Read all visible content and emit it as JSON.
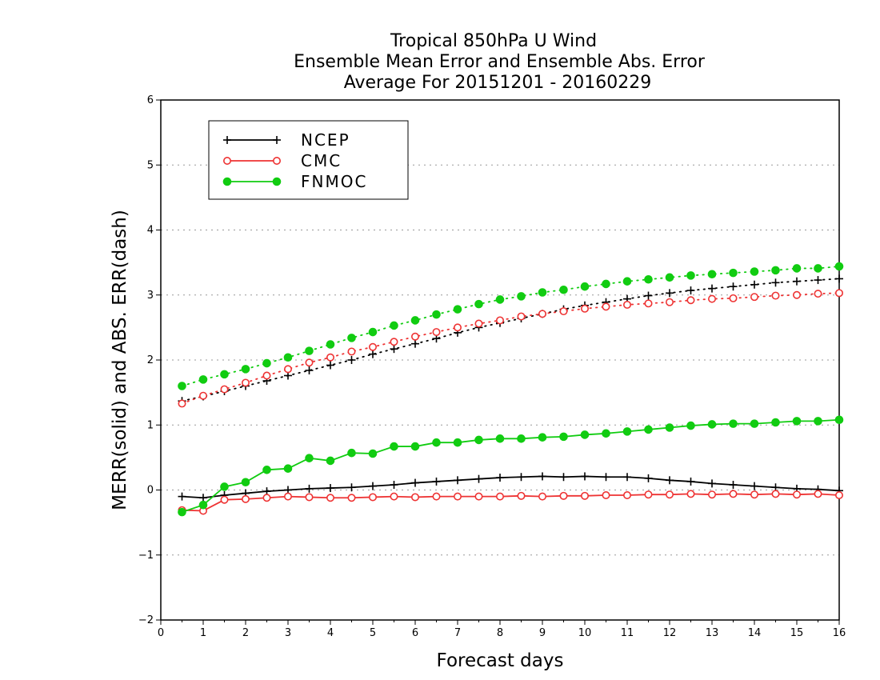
{
  "chart_data": {
    "type": "line",
    "title_lines": [
      "Tropical 850hPa U Wind",
      "Ensemble Mean Error and Ensemble Abs. Error",
      "Average For 20151201 - 20160229"
    ],
    "xlabel": "Forecast days",
    "ylabel": "MERR(solid) and ABS. ERR(dash)",
    "xlim": [
      0,
      16
    ],
    "ylim": [
      -2,
      6
    ],
    "x_ticks": [
      "0",
      "1",
      "2",
      "3",
      "4",
      "5",
      "6",
      "7",
      "8",
      "9",
      "10",
      "11",
      "12",
      "13",
      "14",
      "15",
      "16"
    ],
    "y_ticks": [
      "−2",
      "−1",
      "0",
      "1",
      "2",
      "3",
      "4",
      "5",
      "6"
    ],
    "grid": "horizontal dotted",
    "legend_position": "top-left",
    "x": [
      0.5,
      1,
      1.5,
      2,
      2.5,
      3,
      3.5,
      4,
      4.5,
      5,
      5.5,
      6,
      6.5,
      7,
      7.5,
      8,
      8.5,
      9,
      9.5,
      10,
      10.5,
      11,
      11.5,
      12,
      12.5,
      13,
      13.5,
      14,
      14.5,
      15,
      15.5,
      16
    ],
    "series": [
      {
        "name": "NCEP",
        "color": "#000000",
        "marker": "plus",
        "merr": [
          -0.1,
          -0.12,
          -0.08,
          -0.05,
          -0.02,
          0.0,
          0.02,
          0.03,
          0.04,
          0.06,
          0.08,
          0.11,
          0.13,
          0.15,
          0.17,
          0.19,
          0.2,
          0.21,
          0.2,
          0.21,
          0.2,
          0.2,
          0.18,
          0.15,
          0.13,
          0.1,
          0.08,
          0.06,
          0.04,
          0.02,
          0.01,
          -0.01
        ],
        "abs_err": [
          1.37,
          1.44,
          1.52,
          1.6,
          1.68,
          1.76,
          1.84,
          1.92,
          2.0,
          2.09,
          2.17,
          2.25,
          2.33,
          2.42,
          2.5,
          2.57,
          2.64,
          2.71,
          2.78,
          2.84,
          2.89,
          2.94,
          2.99,
          3.03,
          3.07,
          3.1,
          3.13,
          3.16,
          3.19,
          3.21,
          3.23,
          3.25
        ]
      },
      {
        "name": "CMC",
        "color": "#ee3333",
        "marker": "open-circle",
        "merr": [
          -0.31,
          -0.32,
          -0.15,
          -0.14,
          -0.12,
          -0.1,
          -0.11,
          -0.12,
          -0.12,
          -0.11,
          -0.1,
          -0.11,
          -0.1,
          -0.1,
          -0.1,
          -0.1,
          -0.09,
          -0.1,
          -0.09,
          -0.09,
          -0.08,
          -0.08,
          -0.07,
          -0.07,
          -0.06,
          -0.07,
          -0.06,
          -0.07,
          -0.06,
          -0.07,
          -0.06,
          -0.08
        ],
        "abs_err": [
          1.33,
          1.45,
          1.55,
          1.65,
          1.76,
          1.86,
          1.96,
          2.04,
          2.13,
          2.2,
          2.28,
          2.36,
          2.43,
          2.5,
          2.56,
          2.61,
          2.67,
          2.71,
          2.75,
          2.79,
          2.82,
          2.85,
          2.87,
          2.89,
          2.92,
          2.94,
          2.95,
          2.97,
          2.99,
          3.0,
          3.02,
          3.03
        ]
      },
      {
        "name": "FNMOC",
        "color": "#11cc11",
        "marker": "filled-circle",
        "merr": [
          -0.34,
          -0.23,
          0.05,
          0.12,
          0.31,
          0.33,
          0.49,
          0.45,
          0.57,
          0.56,
          0.67,
          0.67,
          0.73,
          0.73,
          0.77,
          0.79,
          0.79,
          0.81,
          0.82,
          0.85,
          0.87,
          0.9,
          0.93,
          0.96,
          0.99,
          1.01,
          1.02,
          1.02,
          1.04,
          1.06,
          1.06,
          1.08
        ],
        "abs_err": [
          1.6,
          1.7,
          1.78,
          1.86,
          1.95,
          2.04,
          2.14,
          2.24,
          2.34,
          2.43,
          2.53,
          2.61,
          2.7,
          2.78,
          2.86,
          2.93,
          2.98,
          3.04,
          3.08,
          3.13,
          3.17,
          3.21,
          3.24,
          3.27,
          3.3,
          3.32,
          3.34,
          3.36,
          3.38,
          3.41,
          3.41,
          3.44
        ]
      }
    ]
  }
}
